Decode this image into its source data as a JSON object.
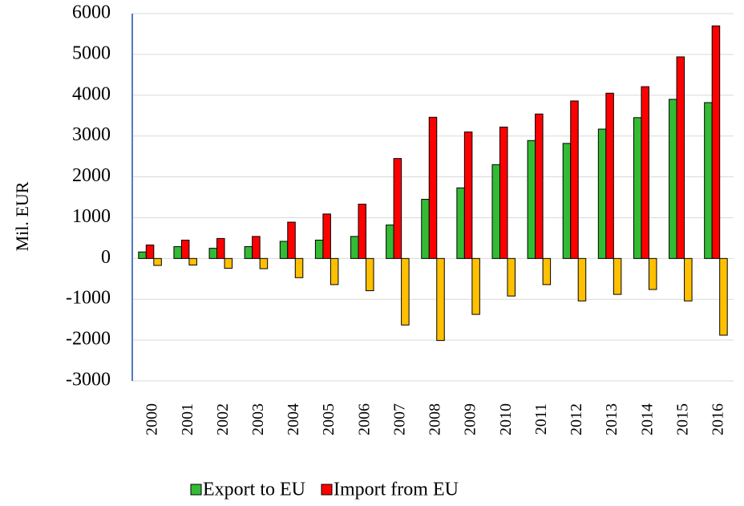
{
  "chart_data": {
    "type": "bar",
    "y_label": "Mil. EUR",
    "categories": [
      "2000",
      "2001",
      "2002",
      "2003",
      "2004",
      "2005",
      "2006",
      "2007",
      "2008",
      "2009",
      "2010",
      "2011",
      "2012",
      "2013",
      "2014",
      "2015",
      "2016"
    ],
    "series": [
      {
        "name": "Export to EU",
        "color": "#33bb33",
        "values": [
          160,
          290,
          250,
          290,
          420,
          450,
          540,
          820,
          1450,
          1730,
          2300,
          2890,
          2820,
          3170,
          3450,
          3900,
          3820
        ]
      },
      {
        "name": "Import from EU",
        "color": "#ff0000",
        "values": [
          330,
          450,
          490,
          540,
          890,
          1090,
          1330,
          2450,
          3460,
          3100,
          3220,
          3540,
          3860,
          4050,
          4210,
          4940,
          5700
        ]
      },
      {
        "color": "#ffc000",
        "values": [
          -170,
          -160,
          -240,
          -250,
          -470,
          -640,
          -790,
          -1630,
          -2010,
          -1370,
          -920,
          -640,
          -1040,
          -880,
          -760,
          -1040,
          -1880
        ]
      }
    ],
    "ylim": [
      -3000,
      6000
    ],
    "yticks": [
      -3000,
      -2000,
      -1000,
      0,
      1000,
      2000,
      3000,
      4000,
      5000,
      6000
    ],
    "grid": true,
    "legend": "bottom"
  }
}
